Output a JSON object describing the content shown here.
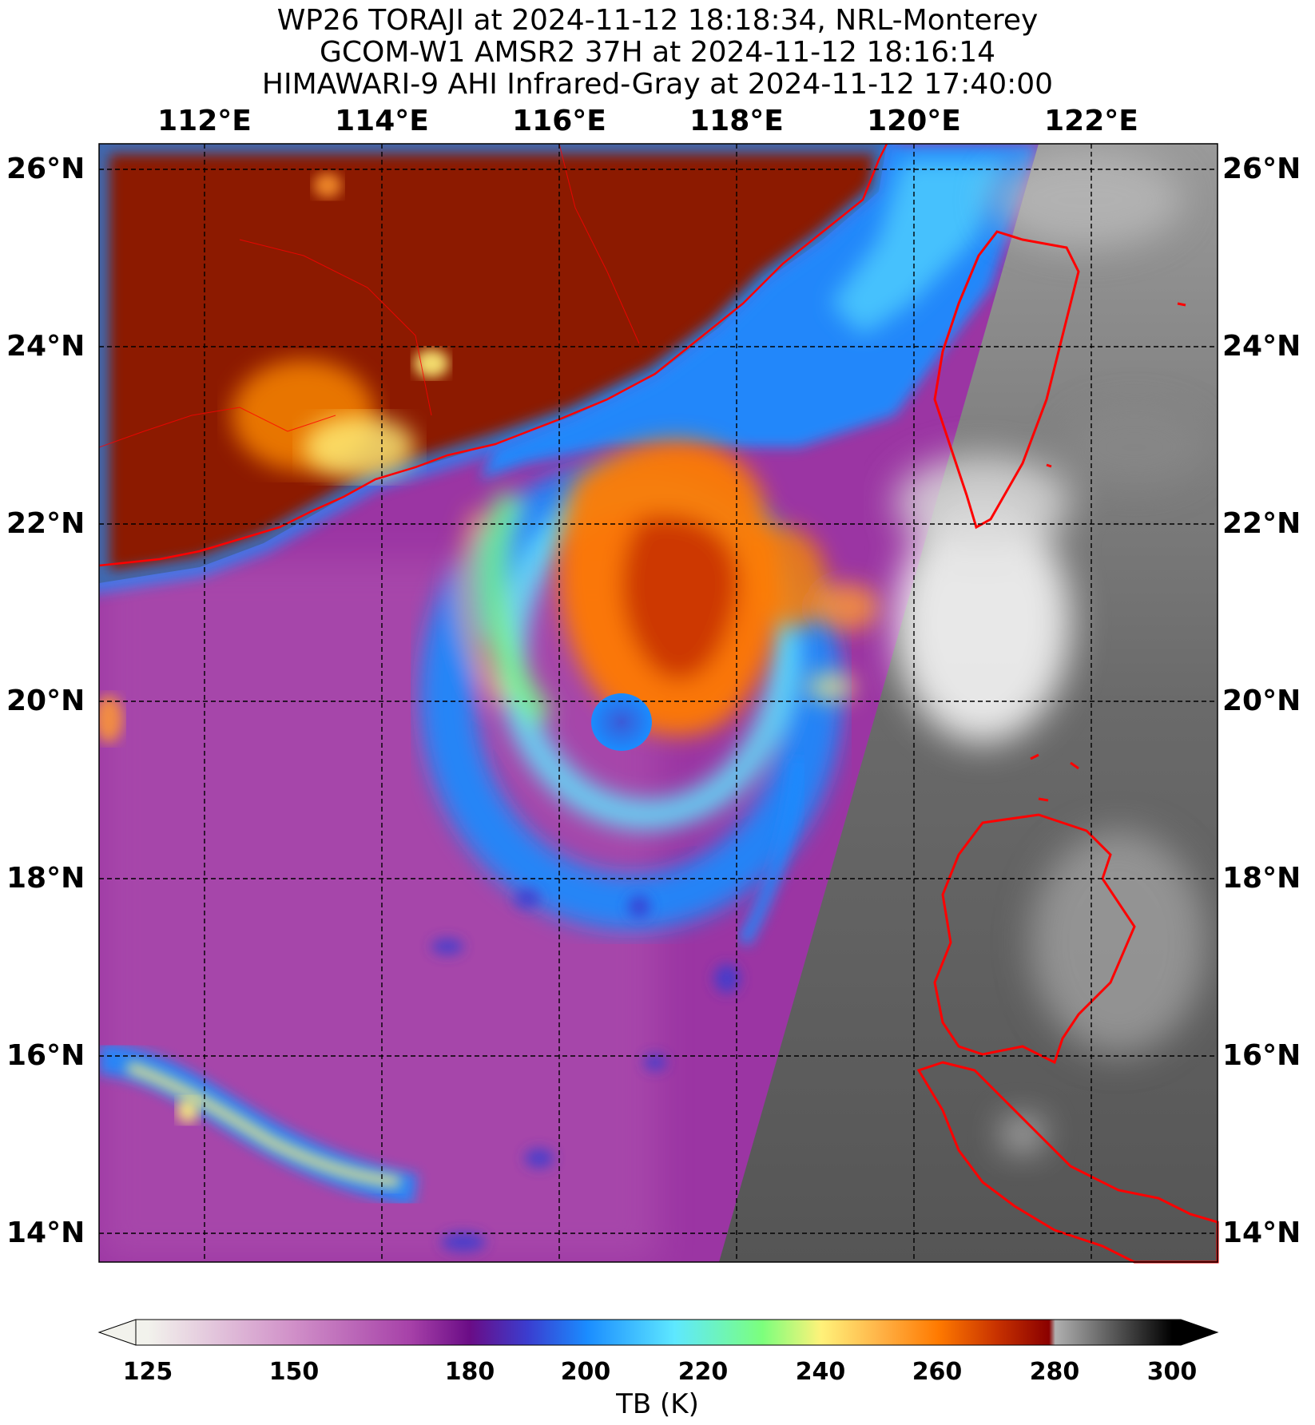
{
  "title": {
    "line1": "WP26 TORAJI at 2024-11-12 18:18:34, NRL-Monterey",
    "line2": "GCOM-W1 AMSR2 37H at 2024-11-12 18:16:14",
    "line3": "HIMAWARI-9 AHI Infrared-Gray at 2024-11-12 17:40:00"
  },
  "map": {
    "lon_labels": [
      "112°E",
      "114°E",
      "116°E",
      "118°E",
      "120°E",
      "122°E"
    ],
    "lat_labels": [
      "26°N",
      "24°N",
      "22°N",
      "20°N",
      "18°N",
      "16°N",
      "14°N"
    ],
    "border_color": "#ff0000",
    "gridline_style": "dashed-black"
  },
  "colorbar": {
    "title": "TB (K)",
    "ticks": [
      "125",
      "150",
      "180",
      "200",
      "220",
      "240",
      "260",
      "280",
      "300"
    ],
    "stops": [
      {
        "value": 125,
        "color": "#f2f2ec"
      },
      {
        "value": 150,
        "color": "#d08fc8"
      },
      {
        "value": 170,
        "color": "#a640a8"
      },
      {
        "value": 180,
        "color": "#6a0c86"
      },
      {
        "value": 190,
        "color": "#3a3ed0"
      },
      {
        "value": 200,
        "color": "#1a8cff"
      },
      {
        "value": 215,
        "color": "#5ee8ff"
      },
      {
        "value": 230,
        "color": "#7cff7c"
      },
      {
        "value": 240,
        "color": "#fff27a"
      },
      {
        "value": 250,
        "color": "#ffb347"
      },
      {
        "value": 260,
        "color": "#ff7a00"
      },
      {
        "value": 270,
        "color": "#c83200"
      },
      {
        "value": 279,
        "color": "#8a0000"
      },
      {
        "value": 280,
        "color": "#b0b0b0"
      },
      {
        "value": 300,
        "color": "#000000"
      }
    ]
  }
}
